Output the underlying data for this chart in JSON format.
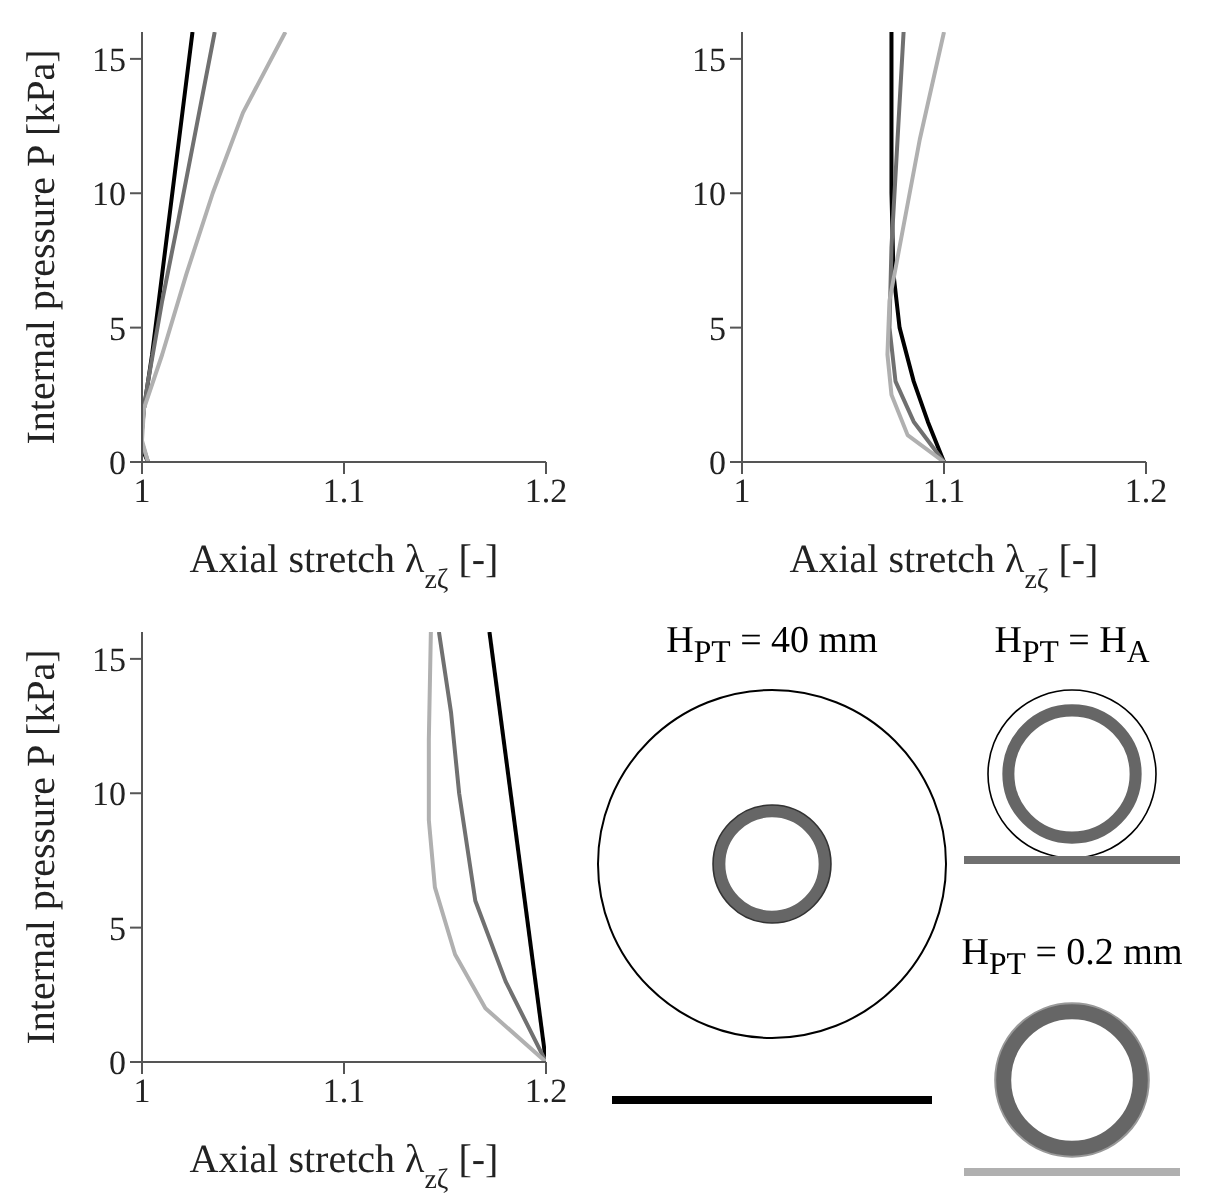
{
  "chart_data": [
    {
      "type": "line",
      "xlabel": "Axial stretch λ$_{zζ}$ [-]",
      "ylabel": "Internal pressure P [kPa]",
      "xlim": [
        1,
        1.2
      ],
      "xticks": [
        1,
        1.1,
        1.2
      ],
      "ylim": [
        0,
        16
      ],
      "yticks": [
        0,
        5,
        10,
        15
      ],
      "line_style": "solid",
      "series": [
        {
          "color": "#000000",
          "x": [
            1.003,
            1.0,
            1.0,
            1.001,
            1.005,
            1.01,
            1.015,
            1.02,
            1.025
          ],
          "values": [
            0,
            0.5,
            1.2,
            2,
            4,
            7,
            10,
            13,
            16
          ]
        },
        {
          "color": "#707070",
          "x": [
            1.003,
            1.0,
            1.0,
            1.003,
            1.01,
            1.018,
            1.027,
            1.036
          ],
          "values": [
            0,
            0.7,
            1.5,
            3,
            6,
            9,
            12.5,
            16
          ]
        },
        {
          "color": "#b0b0b0",
          "x": [
            1.003,
            1.0,
            1.001,
            1.01,
            1.022,
            1.035,
            1.05,
            1.071
          ],
          "values": [
            0,
            0.8,
            2,
            4,
            7,
            10,
            13,
            16
          ]
        }
      ]
    },
    {
      "type": "line",
      "xlabel": "Axial stretch λ$_{zζ}$ [-]",
      "xlim": [
        1,
        1.2
      ],
      "xticks": [
        1,
        1.1,
        1.2
      ],
      "ylim": [
        0,
        16
      ],
      "yticks": [
        0,
        5,
        10,
        15
      ],
      "line_style": "solid",
      "series": [
        {
          "color": "#000000",
          "x": [
            1.1,
            1.092,
            1.085,
            1.078,
            1.075,
            1.074,
            1.074,
            1.074
          ],
          "values": [
            0,
            1.5,
            3,
            5,
            7,
            10,
            13,
            16
          ]
        },
        {
          "color": "#707070",
          "x": [
            1.1,
            1.085,
            1.076,
            1.073,
            1.074,
            1.077,
            1.08
          ],
          "values": [
            0,
            1.5,
            3,
            5,
            8,
            12,
            16
          ]
        },
        {
          "color": "#b0b0b0",
          "x": [
            1.1,
            1.082,
            1.074,
            1.072,
            1.073,
            1.078,
            1.088,
            1.1
          ],
          "values": [
            0,
            1,
            2.5,
            4,
            6,
            8,
            12,
            16
          ]
        }
      ]
    },
    {
      "type": "line",
      "xlabel": "Axial stretch λ$_{zζ}$ [-]",
      "ylabel": "Internal pressure P [kPa]",
      "xlim": [
        1,
        1.2
      ],
      "xticks": [
        1,
        1.1,
        1.2
      ],
      "ylim": [
        0,
        16
      ],
      "yticks": [
        0,
        5,
        10,
        15
      ],
      "line_style": "solid",
      "legend": "right",
      "series": [
        {
          "name": "H$_{PT}$ = 40 mm",
          "color": "#000000",
          "x": [
            1.2,
            1.172
          ],
          "values": [
            0,
            16
          ]
        },
        {
          "name": "H$_{PT}$ = H$_{A}$",
          "color": "#707070",
          "x": [
            1.2,
            1.18,
            1.165,
            1.157,
            1.153,
            1.15,
            1.147
          ],
          "values": [
            0,
            3,
            6,
            10,
            13,
            14.5,
            16
          ]
        },
        {
          "name": "H$_{PT}$ = 0.2 mm",
          "color": "#b0b0b0",
          "x": [
            1.2,
            1.17,
            1.155,
            1.145,
            1.142,
            1.142,
            1.143
          ],
          "values": [
            0,
            2,
            4,
            6.5,
            9,
            12,
            16
          ]
        }
      ]
    }
  ]
}
